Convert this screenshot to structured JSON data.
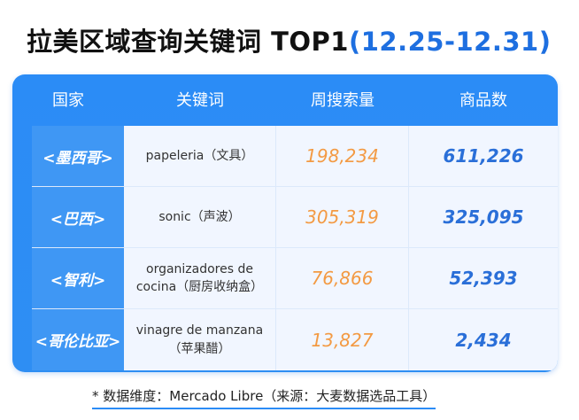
{
  "title": {
    "main": "拉美区域查询关键词 TOP1",
    "date": "(12.25-12.31)"
  },
  "table": {
    "headers": [
      "国家",
      "关键词",
      "周搜索量",
      "商品数"
    ],
    "rows": [
      {
        "country": "<墨西哥>",
        "keyword": "papeleria（文具）",
        "volume": "198,234",
        "products": "611,226"
      },
      {
        "country": "<巴西>",
        "keyword": "sonic（声波）",
        "volume": "305,319",
        "products": "325,095"
      },
      {
        "country": "<智利>",
        "keyword": "organizadores de cocina（厨房收纳盒）",
        "volume": "76,866",
        "products": "52,393"
      },
      {
        "country": "<哥伦比亚>",
        "keyword": "vinagre de manzana（苹果醋）",
        "volume": "13,827",
        "products": "2,434"
      }
    ]
  },
  "footnote": "* 数据维度：Mercado Libre（来源：大麦数据选品工具）",
  "colors": {
    "accent": "#2b8cf6",
    "volume": "#f39a43",
    "products": "#2a6fd8"
  }
}
